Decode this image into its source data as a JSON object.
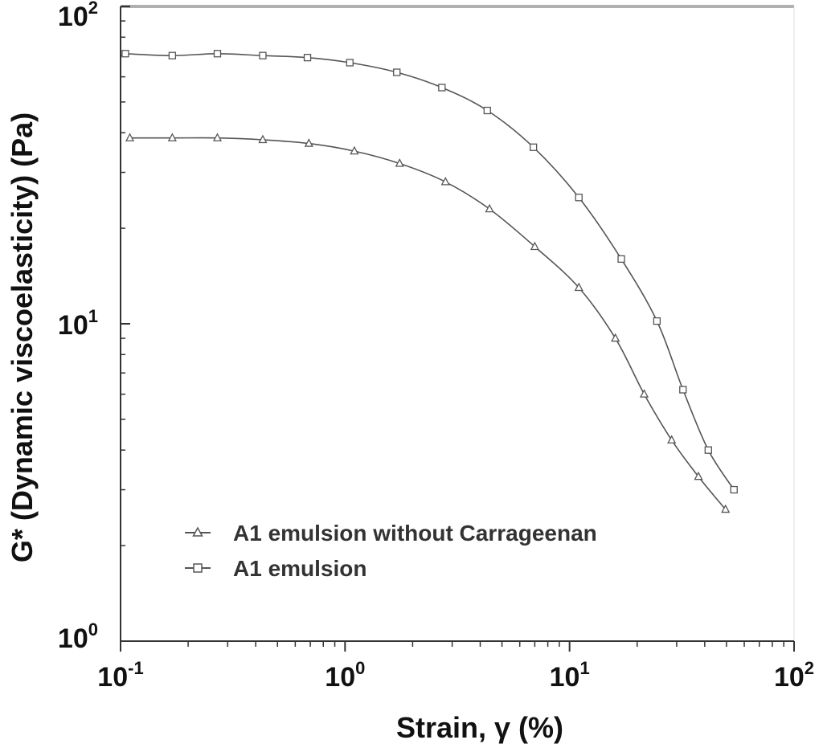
{
  "chart_data": {
    "type": "line",
    "xlabel": "Strain, γ (%)",
    "ylabel": "G* (Dynamic viscoelasticity) (Pa)",
    "xscale": "log",
    "yscale": "log",
    "xlim": [
      0.1,
      100
    ],
    "ylim": [
      1,
      100
    ],
    "x_ticks": [
      {
        "value": 0.1,
        "base": "10",
        "exp": "-1"
      },
      {
        "value": 1,
        "base": "10",
        "exp": "0"
      },
      {
        "value": 10,
        "base": "10",
        "exp": "1"
      },
      {
        "value": 100,
        "base": "10",
        "exp": "2"
      }
    ],
    "y_ticks": [
      {
        "value": 1,
        "base": "10",
        "exp": "0"
      },
      {
        "value": 10,
        "base": "10",
        "exp": "1"
      },
      {
        "value": 100,
        "base": "10",
        "exp": "2"
      }
    ],
    "grid": false,
    "legend_position": "bottom-left",
    "series": [
      {
        "name": "A1 emulsion without Carrageenan",
        "marker": "triangle",
        "color": "#555555",
        "x": [
          0.11,
          0.17,
          0.27,
          0.43,
          0.69,
          1.1,
          1.75,
          2.8,
          4.4,
          7.0,
          11.0,
          16.0,
          21.5,
          28.5,
          37.5,
          49.5
        ],
        "y": [
          38.5,
          38.5,
          38.5,
          38.0,
          37.0,
          35.0,
          32.0,
          28.0,
          23.0,
          17.5,
          13.0,
          9.0,
          6.0,
          4.3,
          3.3,
          2.6
        ]
      },
      {
        "name": "A1 emulsion",
        "marker": "square",
        "color": "#555555",
        "x": [
          0.105,
          0.17,
          0.27,
          0.43,
          0.68,
          1.05,
          1.7,
          2.7,
          4.3,
          6.9,
          11.0,
          17.0,
          24.5,
          32.0,
          41.5,
          54.0
        ],
        "y": [
          71.0,
          70.0,
          71.0,
          70.0,
          69.0,
          66.5,
          62.0,
          55.5,
          47.0,
          36.0,
          25.0,
          16.0,
          10.2,
          6.2,
          4.0,
          3.0
        ]
      }
    ]
  }
}
